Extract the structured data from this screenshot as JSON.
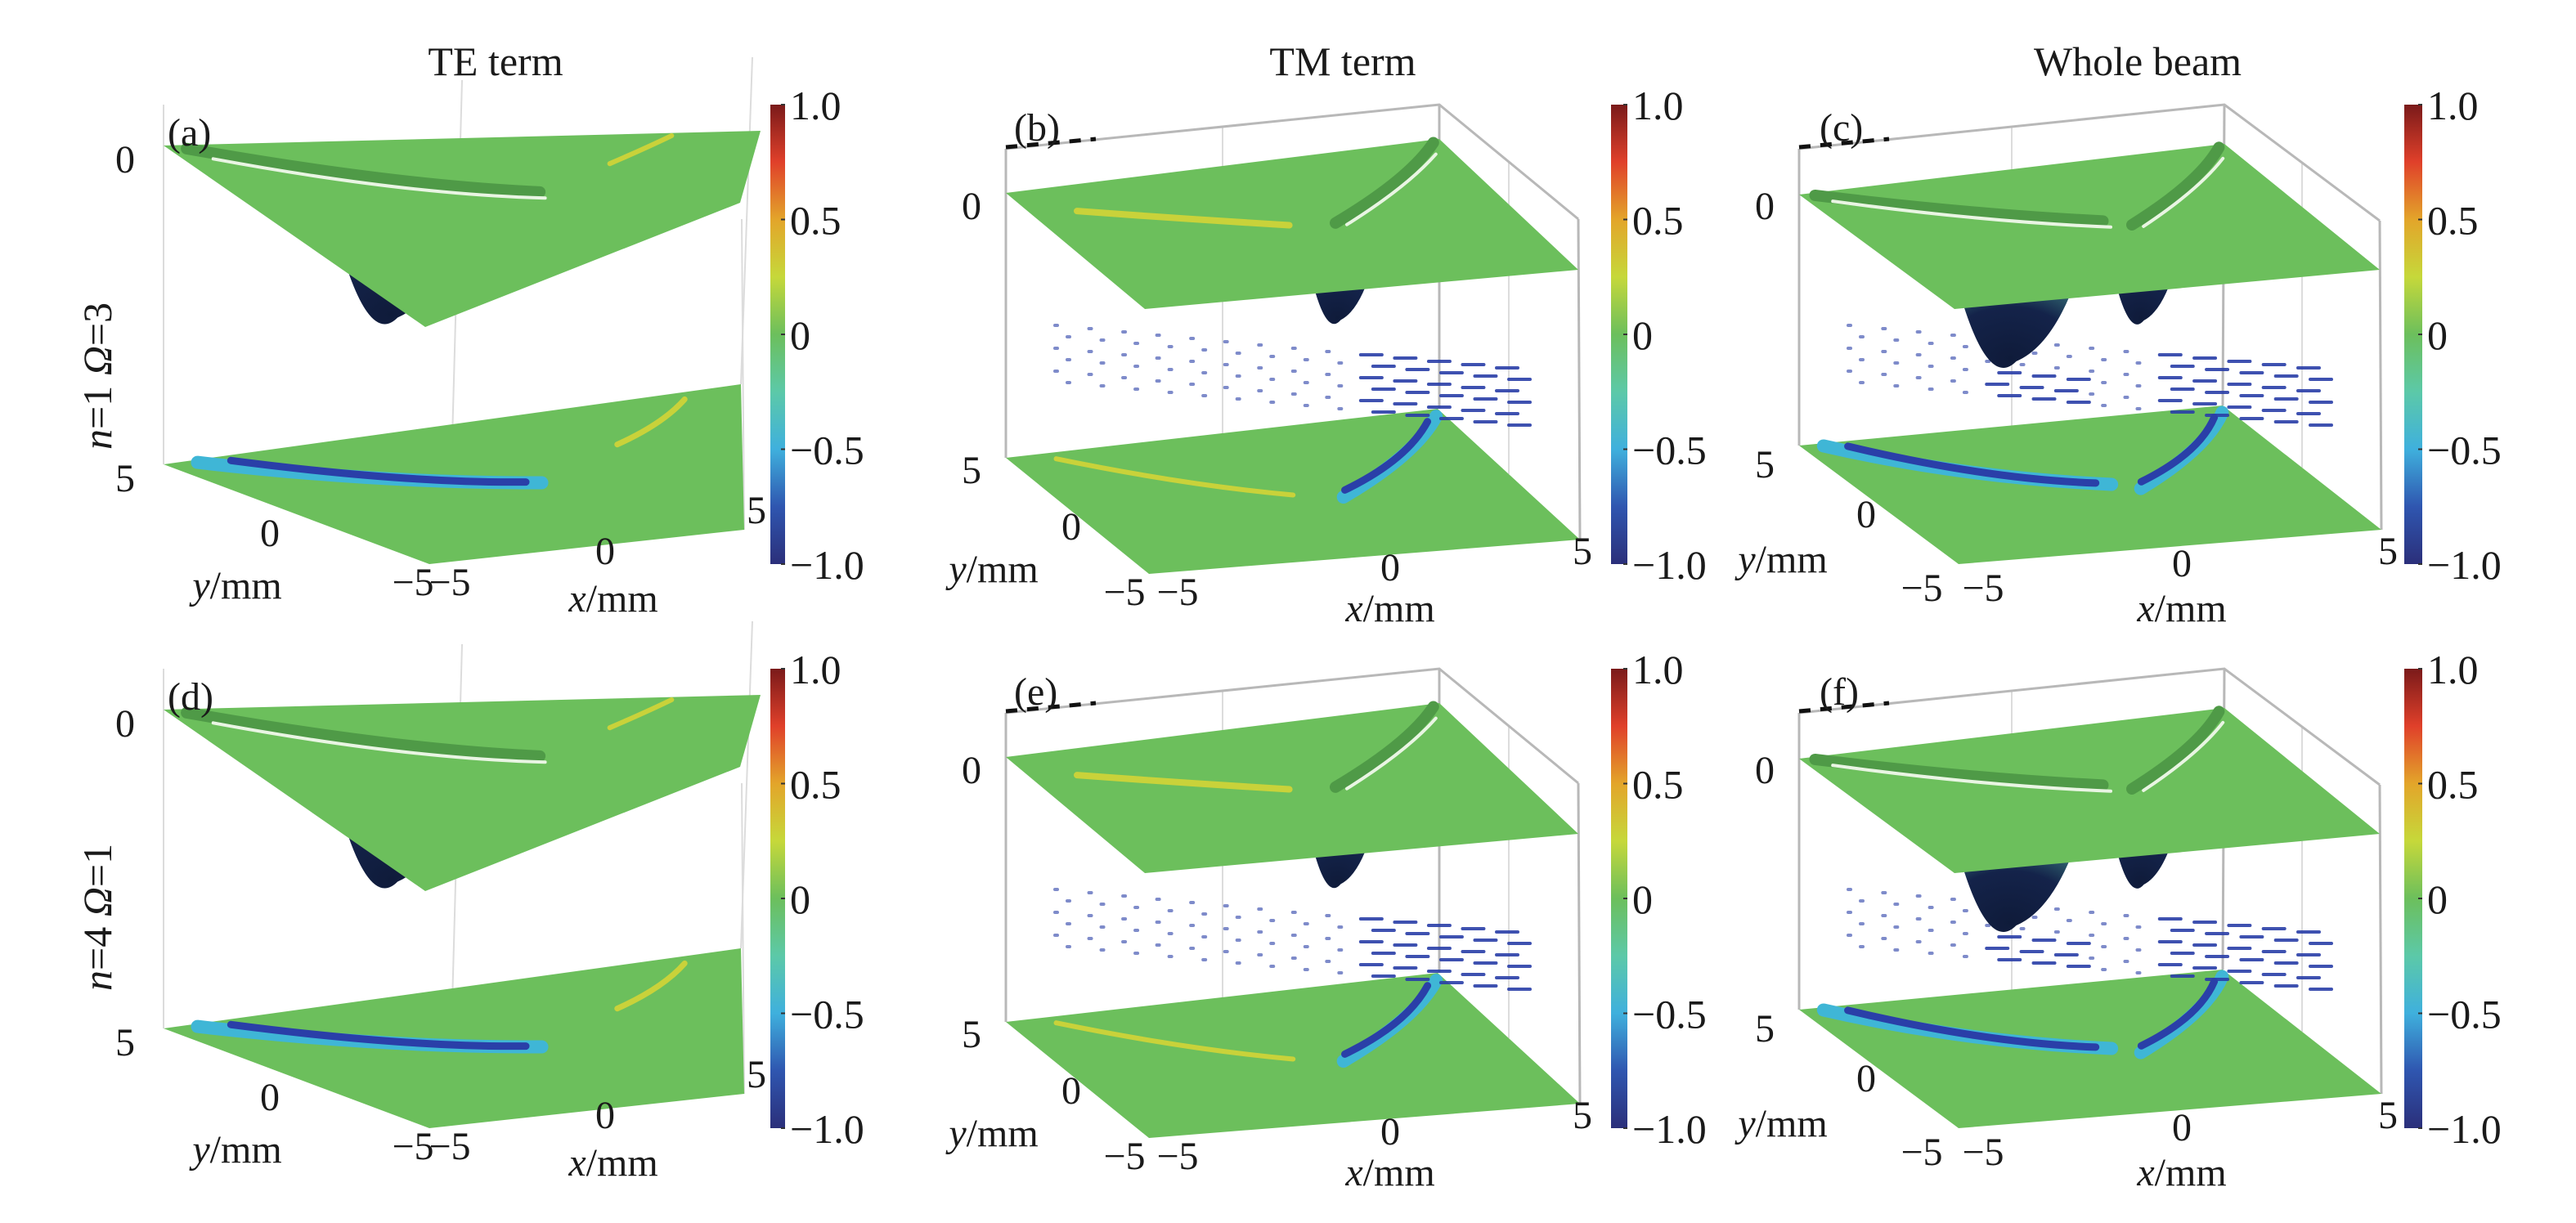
{
  "figure": {
    "column_titles": [
      "TE term",
      "TM term",
      "Whole beam"
    ],
    "row_labels": [
      {
        "n": "n",
        "eq1": "=1",
        "omega": "Ω",
        "eq2": "=3",
        "text": "n=1 Ω=3"
      },
      {
        "n": "n",
        "eq1": "=4",
        "omega": "Ω",
        "eq2": "=1",
        "text": "n=4 Ω=1"
      }
    ]
  },
  "chart_data": [
    {
      "panel": "(a)",
      "type": "heatmap",
      "subtype": "3d-surface-with-projection",
      "column": "TE term",
      "row": "n=1 Ω=3",
      "xlabel": "x/mm",
      "ylabel": "y/mm",
      "x_ticks": [
        "−5",
        "0",
        "5"
      ],
      "y_ticks": [
        "−5",
        "0",
        "5"
      ],
      "z_ticks": [
        "0",
        "5"
      ],
      "xlim": [
        -5,
        5
      ],
      "ylim": [
        -5,
        5
      ],
      "colorbar": {
        "ticks": [
          "1.0",
          "0.5",
          "0",
          "−0.5",
          "−1.0"
        ],
        "range": [
          -1,
          1
        ],
        "colormap": "jet"
      },
      "features": {
        "dip_centers_x": [
          -3.2
        ],
        "projection_stripes": "left",
        "box": false
      }
    },
    {
      "panel": "(b)",
      "type": "heatmap",
      "subtype": "3d-surface-with-projection",
      "column": "TM term",
      "row": "n=1 Ω=3",
      "xlabel": "x/mm",
      "ylabel": "y/mm",
      "x_ticks": [
        "−5",
        "0",
        "5"
      ],
      "y_ticks": [
        "−5",
        "0",
        "5"
      ],
      "z_ticks": [
        "0",
        "5"
      ],
      "xlim": [
        -5,
        5
      ],
      "ylim": [
        -5,
        5
      ],
      "colorbar": {
        "ticks": [
          "1.0",
          "0.5",
          "0",
          "−0.5",
          "−1.0"
        ],
        "range": [
          -1,
          1
        ],
        "colormap": "jet"
      },
      "features": {
        "dip_centers_x": [
          0.0
        ],
        "projection_stripes": "right",
        "box": true
      }
    },
    {
      "panel": "(c)",
      "type": "heatmap",
      "subtype": "3d-surface-with-projection",
      "column": "Whole beam",
      "row": "n=1 Ω=3",
      "xlabel": "x/mm",
      "ylabel": "y/mm",
      "x_ticks": [
        "−5",
        "0",
        "5"
      ],
      "y_ticks": [
        "−5",
        "0",
        "5"
      ],
      "z_ticks": [
        "0",
        "5"
      ],
      "xlim": [
        -5,
        5
      ],
      "ylim": [
        -5,
        5
      ],
      "colorbar": {
        "ticks": [
          "1.0",
          "0.5",
          "0",
          "−0.5",
          "−1.0"
        ],
        "range": [
          -1,
          1
        ],
        "colormap": "jet"
      },
      "features": {
        "dip_centers_x": [
          -3.0,
          0.0
        ],
        "projection_stripes": "both",
        "box": true
      }
    },
    {
      "panel": "(d)",
      "type": "heatmap",
      "subtype": "3d-surface-with-projection",
      "column": "TE term",
      "row": "n=4 Ω=1",
      "xlabel": "x/mm",
      "ylabel": "y/mm",
      "x_ticks": [
        "−5",
        "0",
        "5"
      ],
      "y_ticks": [
        "−5",
        "0",
        "5"
      ],
      "z_ticks": [
        "0",
        "5"
      ],
      "xlim": [
        -5,
        5
      ],
      "ylim": [
        -5,
        5
      ],
      "colorbar": {
        "ticks": [
          "1.0",
          "0.5",
          "0",
          "−0.5",
          "−1.0"
        ],
        "range": [
          -1,
          1
        ],
        "colormap": "jet"
      },
      "features": {
        "dip_centers_x": [
          -3.2
        ],
        "projection_stripes": "left",
        "box": false
      }
    },
    {
      "panel": "(e)",
      "type": "heatmap",
      "subtype": "3d-surface-with-projection",
      "column": "TM term",
      "row": "n=4 Ω=1",
      "xlabel": "x/mm",
      "ylabel": "y/mm",
      "x_ticks": [
        "−5",
        "0",
        "5"
      ],
      "y_ticks": [
        "−5",
        "0",
        "5"
      ],
      "z_ticks": [
        "0",
        "5"
      ],
      "xlim": [
        -5,
        5
      ],
      "ylim": [
        -5,
        5
      ],
      "colorbar": {
        "ticks": [
          "1.0",
          "0.5",
          "0",
          "−0.5",
          "−1.0"
        ],
        "range": [
          -1,
          1
        ],
        "colormap": "jet"
      },
      "features": {
        "dip_centers_x": [
          0.0
        ],
        "projection_stripes": "right",
        "box": true
      }
    },
    {
      "panel": "(f)",
      "type": "heatmap",
      "subtype": "3d-surface-with-projection",
      "column": "Whole beam",
      "row": "n=4 Ω=1",
      "xlabel": "x/mm",
      "ylabel": "y/mm",
      "x_ticks": [
        "−5",
        "0",
        "5"
      ],
      "y_ticks": [
        "−5",
        "0",
        "5"
      ],
      "z_ticks": [
        "0",
        "5"
      ],
      "xlim": [
        -5,
        5
      ],
      "ylim": [
        -5,
        5
      ],
      "colorbar": {
        "ticks": [
          "1.0",
          "0.5",
          "0",
          "−0.5",
          "−1.0"
        ],
        "range": [
          -1,
          1
        ],
        "colormap": "jet"
      },
      "features": {
        "dip_centers_x": [
          -3.0,
          0.0
        ],
        "projection_stripes": "both",
        "box": true
      }
    }
  ],
  "colors": {
    "surface_green": "#6cbf5c",
    "surface_green_dark": "#4f9a47",
    "dip_navy": "#14234a",
    "stripe_blue": "#2a3fa8",
    "stripe_cyan": "#3fb6d6",
    "highlight_yellow": "#c9d23a",
    "axis_gray": "#b8b8b8",
    "jet_stops": [
      "#2b2f7a",
      "#2f56b0",
      "#3fb0dd",
      "#5cc9a8",
      "#6cbf5c",
      "#c6d83a",
      "#e3a52a",
      "#e0402a",
      "#7a1a1a"
    ]
  }
}
